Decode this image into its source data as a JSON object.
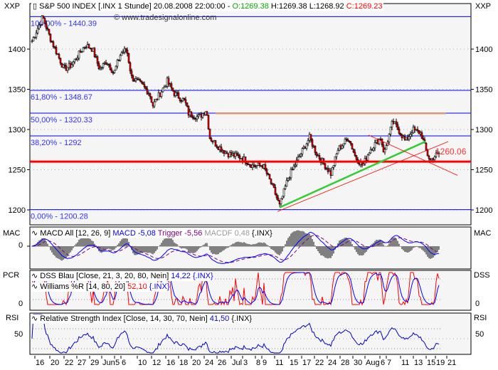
{
  "header": {
    "title": "S&P 500 INDEX [.INX  1 Stunde] 20.08.2008 22:00:00 -",
    "open": "O:1269.38",
    "high": "H:1269.38",
    "low": "L:1268.92",
    "close": "C:1269.23",
    "watermark": "www.tradesignalonline.com"
  },
  "panels": {
    "main": {
      "left_label": "XXP",
      "right_label": "XXP"
    },
    "macd": {
      "left_label": "MAC",
      "right_label": "MAC",
      "legend_name": "MACD All [12, 26, 9]",
      "macd": "MACD -5,08",
      "trigger": "Trigger -5,56",
      "macdf": "MACDF 0,48",
      "symbol": "{.INX}",
      "zero": "0"
    },
    "pcr": {
      "left_label": "PCR",
      "right_label": "DSS",
      "dss_name": "DSS Blau [Close, 21, 3, 20, 80, Nein]",
      "dss_value": "14,22",
      "symbol": "{.INX}",
      "wr_name": "Williams %R [14, 80, 20]",
      "wr_value": "52,10",
      "zero": "0"
    },
    "rsi": {
      "left_label": "RSI",
      "right_label": "RSI",
      "name": "Relative Strength Index [Close, 14, 30, 70, Nein]",
      "value": "41,50",
      "symbol": "{.INX}",
      "fifty": "50"
    }
  },
  "colors": {
    "up": "#ffffff",
    "down": "#ff0000",
    "fib": "#0000ff",
    "support": "#ff0000",
    "resistance": "#f4a460",
    "trend": "#33cc33",
    "macd": "#0000ff",
    "trigger": "#800080",
    "macdf": "#808080",
    "rsi": "#0000cc",
    "wr": "#ff0000",
    "dss": "#0000ff"
  },
  "chart_data": {
    "type": "candlestick",
    "y_ticks": [
      "1400",
      "1350",
      "1300",
      "1250",
      "1200"
    ],
    "ylim": [
      1190,
      1450
    ],
    "x_tick_labels": [
      "16",
      "20",
      "22",
      "27",
      "29",
      "Jun",
      "5",
      "6",
      "10",
      "12",
      "16",
      "18",
      "20",
      "24",
      "26",
      "Jul",
      "3",
      "8",
      "9",
      "11",
      "15",
      "17",
      "22",
      "24",
      "28",
      "30",
      "Aug",
      "6",
      "7",
      "11",
      "13",
      "15",
      "19",
      "21"
    ],
    "close_approx": [
      1418,
      1415,
      1375,
      1390,
      1405,
      1378,
      1370,
      1395,
      1355,
      1338,
      1360,
      1335,
      1318,
      1322,
      1280,
      1268,
      1265,
      1255,
      1255,
      1222,
      1240,
      1270,
      1280,
      1252,
      1285,
      1268,
      1258,
      1290,
      1280,
      1300,
      1298,
      1272,
      1264,
      1269.23
    ],
    "fib_levels": [
      {
        "label": "100,00% - 1440.39",
        "value": 1440.39
      },
      {
        "label": "61,80% - 1348.67",
        "value": 1348.67
      },
      {
        "label": "50,00% - 1320.33",
        "value": 1320.33
      },
      {
        "label": "38,20% - 1292",
        "value": 1292
      },
      {
        "label": "0,00% - 1200.28",
        "value": 1200.28
      }
    ],
    "support": {
      "label": "1260.06",
      "value": 1260.06
    },
    "resistance": 1320
  }
}
